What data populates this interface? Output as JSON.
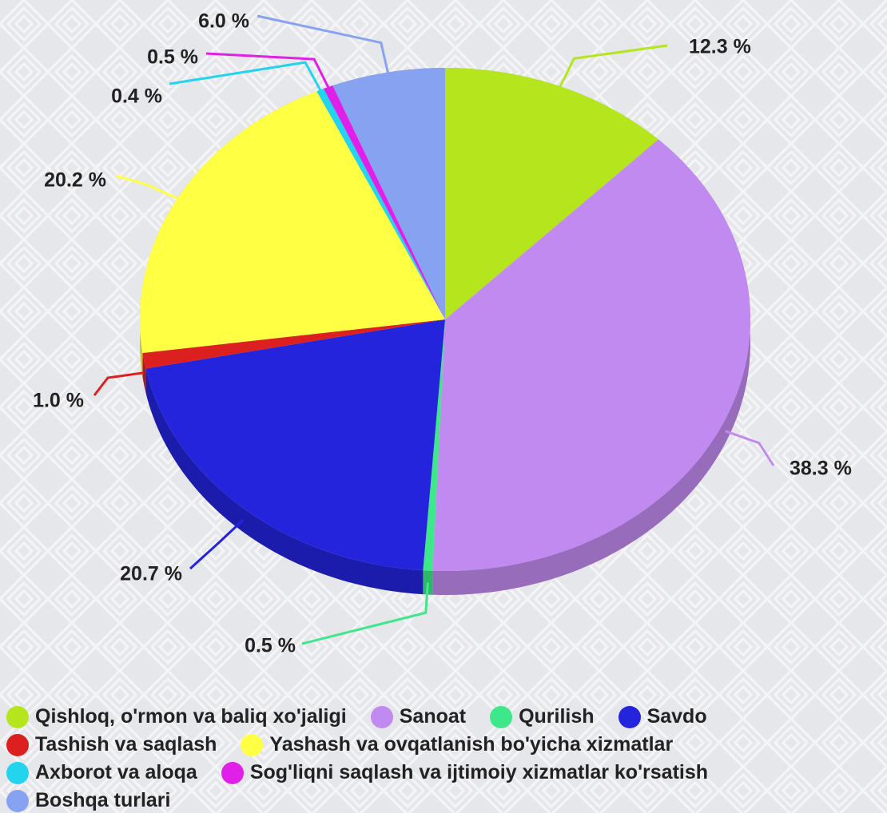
{
  "chart_data": {
    "type": "pie",
    "categories": [
      "Qishloq, o'rmon va baliq xo'jaligi",
      "Sanoat",
      "Qurilish",
      "Savdo",
      "Tashish va saqlash",
      "Yashash va ovqatlanish bo'yicha xizmatlar",
      "Axborot va aloqa",
      "Sog'liqni saqlash va ijtimoiy xizmatlar ko'rsatish",
      "Boshqa turlari"
    ],
    "values": [
      12.3,
      38.3,
      0.5,
      20.7,
      1.0,
      20.2,
      0.4,
      0.5,
      6.0
    ],
    "value_labels": [
      "12.3 %",
      "38.3 %",
      "0.5 %",
      "20.7 %",
      "1.0 %",
      "20.2 %",
      "0.4 %",
      "0.5 %",
      "6.0 %"
    ],
    "colors": [
      "#b5e61d",
      "#c08af0",
      "#3ee88a",
      "#2424dc",
      "#dc2020",
      "#ffff44",
      "#22d4ee",
      "#e020e8",
      "#88a2f2"
    ],
    "legend": "bottom"
  }
}
